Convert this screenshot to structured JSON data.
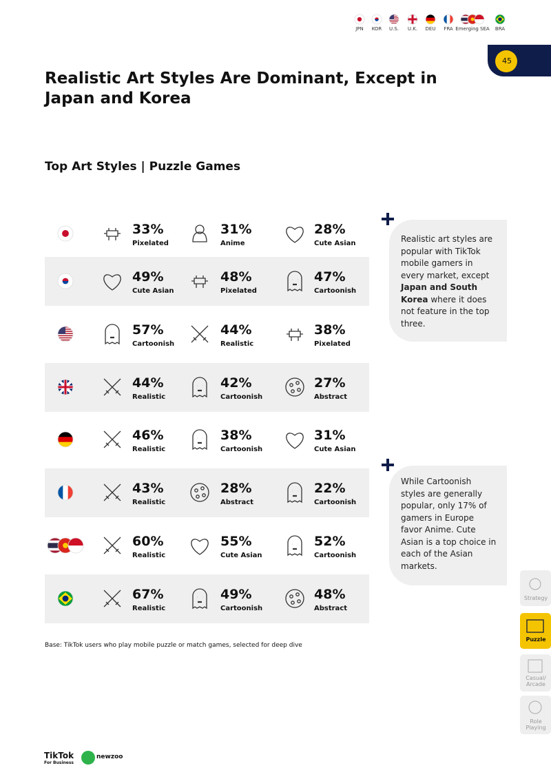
{
  "header": {
    "markets": [
      "JPN",
      "KOR",
      "U.S.",
      "U.K.",
      "DEU",
      "FRA",
      "Emerging SEA",
      "BRA"
    ],
    "page_number": "45"
  },
  "title": "Realistic Art Styles Are Dominant, Except in Japan and Korea",
  "subtitle": "Top Art Styles | Puzzle Games",
  "table": {
    "rows": [
      [
        {
          "value": "33%",
          "label": "Pixelated"
        },
        {
          "value": "31%",
          "label": "Anime"
        },
        {
          "value": "28%",
          "label": "Cute Asian"
        }
      ],
      [
        {
          "value": "49%",
          "label": "Cute Asian"
        },
        {
          "value": "48%",
          "label": "Pixelated"
        },
        {
          "value": "47%",
          "label": "Cartoonish"
        }
      ],
      [
        {
          "value": "57%",
          "label": "Cartoonish"
        },
        {
          "value": "44%",
          "label": "Realistic"
        },
        {
          "value": "38%",
          "label": "Pixelated"
        }
      ],
      [
        {
          "value": "44%",
          "label": "Realistic"
        },
        {
          "value": "42%",
          "label": "Cartoonish"
        },
        {
          "value": "27%",
          "label": "Abstract"
        }
      ],
      [
        {
          "value": "46%",
          "label": "Realistic"
        },
        {
          "value": "38%",
          "label": "Cartoonish"
        },
        {
          "value": "31%",
          "label": "Cute Asian"
        }
      ],
      [
        {
          "value": "43%",
          "label": "Realistic"
        },
        {
          "value": "28%",
          "label": "Abstract"
        },
        {
          "value": "22%",
          "label": "Cartoonish"
        }
      ],
      [
        {
          "value": "60%",
          "label": "Realistic"
        },
        {
          "value": "55%",
          "label": "Cute Asian"
        },
        {
          "value": "52%",
          "label": "Cartoonish"
        }
      ],
      [
        {
          "value": "67%",
          "label": "Realistic"
        },
        {
          "value": "49%",
          "label": "Cartoonish"
        },
        {
          "value": "48%",
          "label": "Abstract"
        }
      ]
    ]
  },
  "notes": [
    [
      "Realistic art styles are popular with TikTok mobile gamers in every market, except ",
      "Japan and South Korea",
      " where it does not feature in the top three."
    ],
    [
      "While Cartoonish styles are generally popular, only 17% of gamers in Europe favor Anime. Cute Asian is a top choice in each of the Asian markets."
    ]
  ],
  "footnote": "Base: TikTok users who play mobile puzzle or match games, selected for deep dive",
  "sidebar": [
    "Strategy",
    "Puzzle",
    "Casual/ Arcade",
    "Role Playing"
  ],
  "footer": {
    "brand": "TikTok",
    "brand_sub": "For Business",
    "partner": "newzoo"
  }
}
